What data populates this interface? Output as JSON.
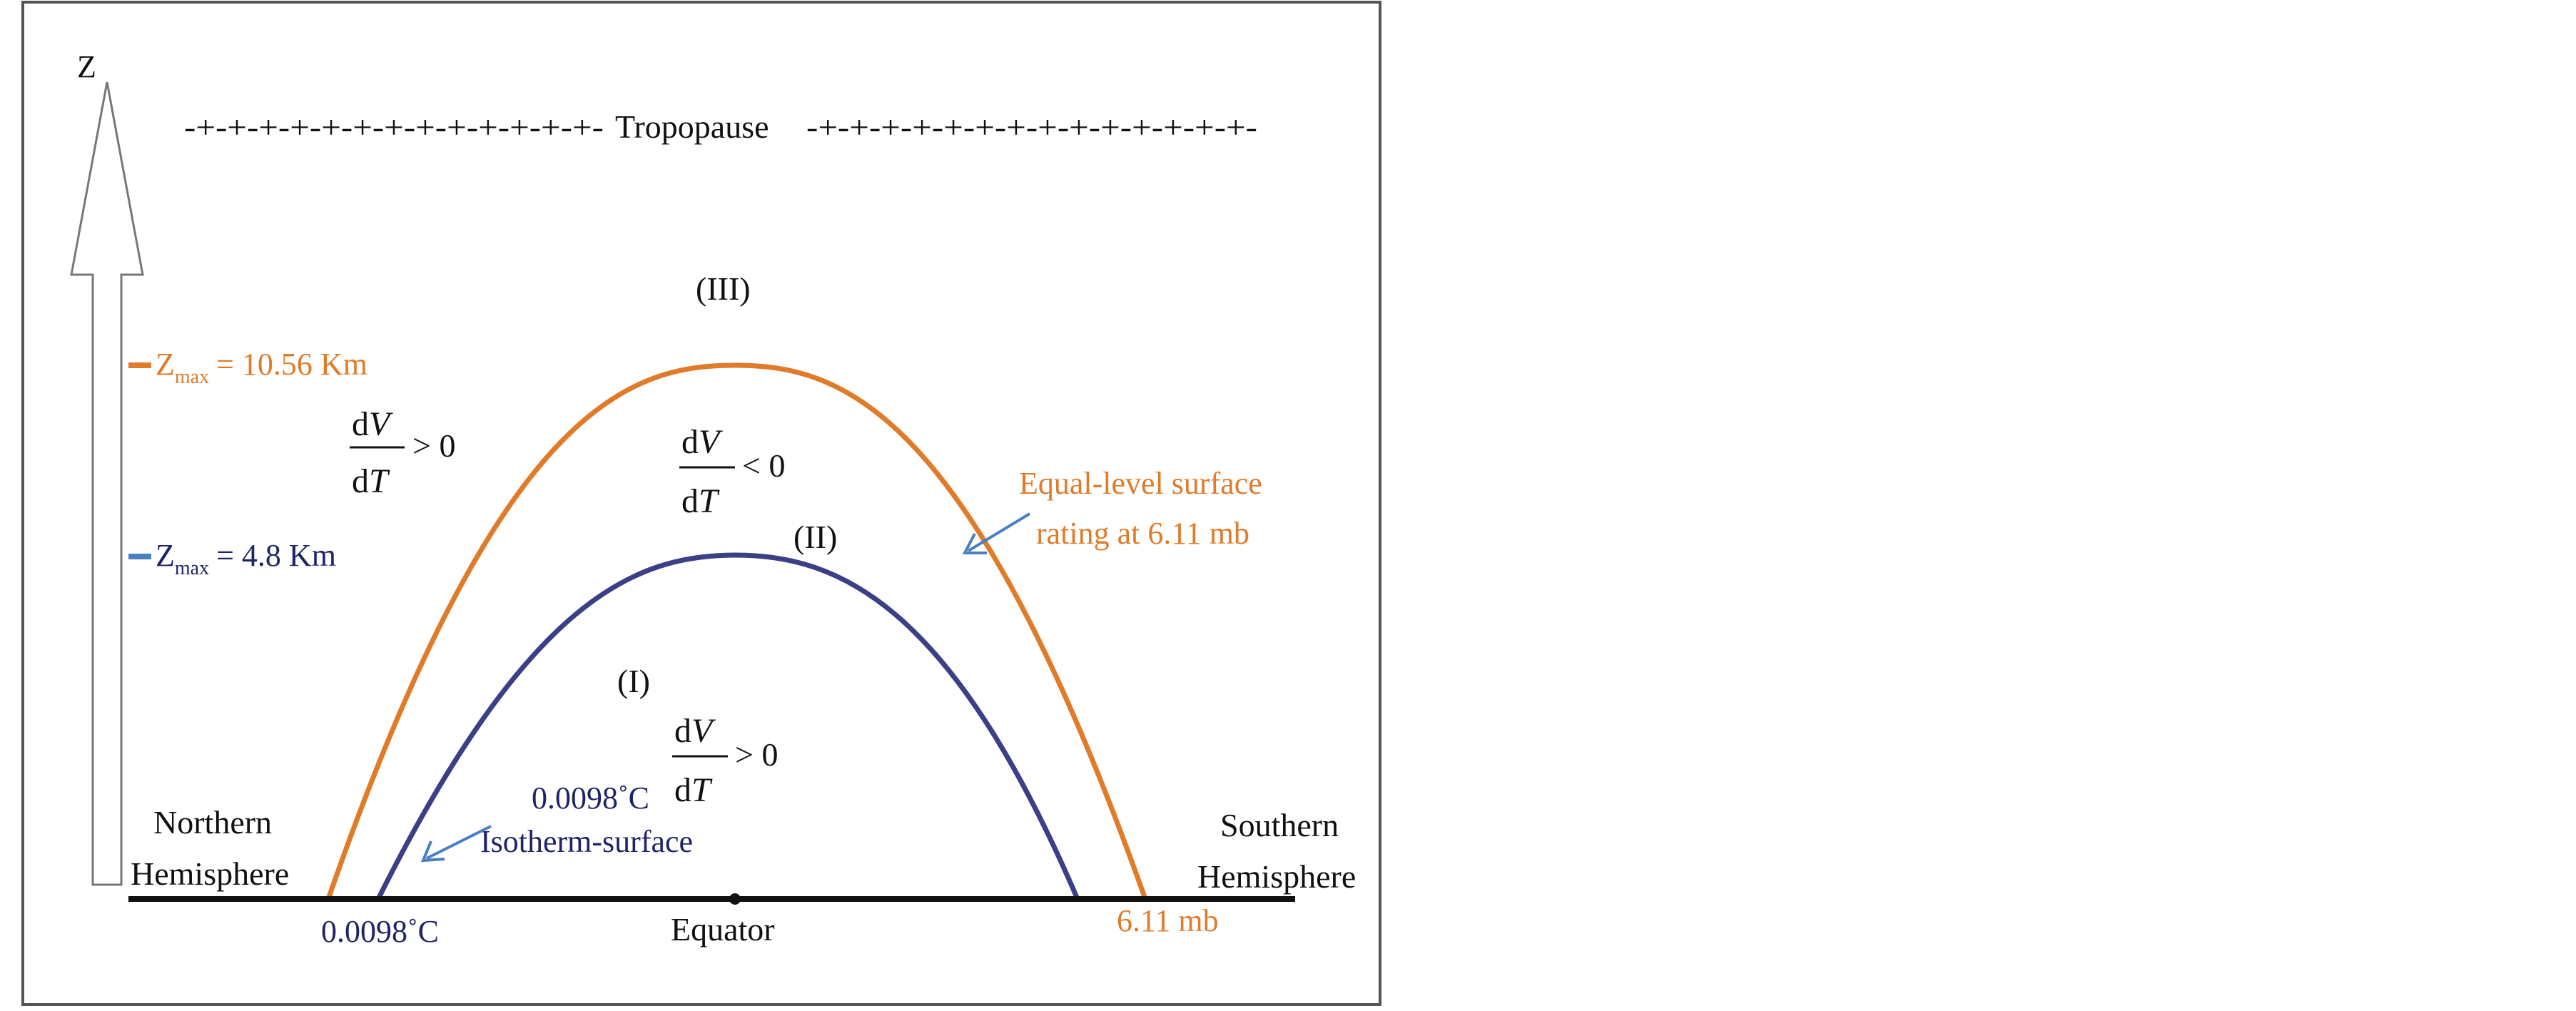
{
  "axis": {
    "z_label": "Z"
  },
  "tropopause": {
    "left_dashes": "-+-+-+-+-+-+-+-+-+-+-+-+-+-",
    "label": "Tropopause",
    "right_dashes": "-+-+-+-+-+-+-+-+-+-+-+-+-+-+-"
  },
  "levels": {
    "zmax_high": {
      "symbol": "Z",
      "subscript": "max",
      "value": "= 10.56 Km"
    },
    "zmax_low": {
      "symbol": "Z",
      "subscript": "max",
      "value": "= 4.8 Km"
    }
  },
  "regions": {
    "region_1": "(I)",
    "region_2": "(II)",
    "region_3": "(III)"
  },
  "derivatives": {
    "upper_left": {
      "numerator": "dV",
      "denominator": "dT",
      "relation": "> 0"
    },
    "middle": {
      "numerator": "dV",
      "denominator": "dT",
      "relation": "< 0"
    },
    "lower": {
      "numerator": "dV",
      "denominator": "dT",
      "relation": "> 0"
    }
  },
  "annotations": {
    "equal_level_line1": "Equal-level surface",
    "equal_level_line2": "rating at 6.11 mb",
    "isotherm_temp": "0.0098˚C",
    "isotherm_label": "Isotherm-surface",
    "bottom_temp": "0.0098˚C",
    "bottom_pressure": "6.11 mb",
    "equator": "Equator",
    "northern_line1": "Northern",
    "northern_line2": "Hemisphere",
    "southern_line1": "Southern",
    "southern_line2": "Hemisphere"
  },
  "colors": {
    "orange": "#e07b2a",
    "navy": "#1f2466",
    "navy_curve": "#3a3f86",
    "arrow_blue": "#4a7fc1",
    "black": "#111111"
  }
}
